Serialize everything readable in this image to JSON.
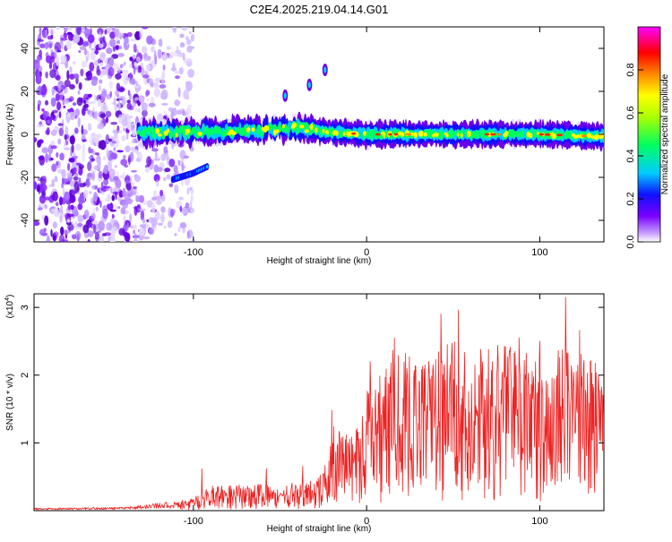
{
  "title": "C2E4.2025.219.04.14.G01",
  "chart_data": [
    {
      "type": "heatmap",
      "xlabel": "Height of straight line (km)",
      "ylabel": "Frequency (Hz)",
      "xlim": [
        -192,
        137
      ],
      "ylim": [
        -50,
        50
      ],
      "xticks": [
        -100,
        0,
        100
      ],
      "yticks": [
        -40,
        -20,
        0,
        20,
        40
      ],
      "grid": false,
      "colorbar": {
        "label": "Normalized spectral amplitude",
        "range": [
          0,
          1
        ],
        "ticks": [
          0.0,
          0.2,
          0.4,
          0.6,
          0.8
        ],
        "tick_labels": [
          "0.0",
          "0.2",
          "0.4",
          "0.6",
          "0.8"
        ],
        "colors": [
          "#ffffff",
          "#7a00ff",
          "#0000ff",
          "#00ccff",
          "#00ff00",
          "#ffff00",
          "#ff7f00",
          "#ff0000",
          "#ff00ff"
        ]
      },
      "features": {
        "noise_region_x": [
          -192,
          -105
        ],
        "main_band": [
          [
            -130,
            1
          ],
          [
            -100,
            1
          ],
          [
            -60,
            2
          ],
          [
            -40,
            3
          ],
          [
            -20,
            1
          ],
          [
            0,
            0
          ],
          [
            50,
            0
          ],
          [
            100,
            0
          ],
          [
            137,
            -1
          ]
        ],
        "lower_branch": [
          [
            -112,
            -21
          ],
          [
            -100,
            -18
          ],
          [
            -92,
            -15
          ]
        ],
        "upper_spikes": [
          [
            -47,
            18
          ],
          [
            -33,
            23
          ],
          [
            -24,
            30
          ]
        ]
      }
    },
    {
      "type": "line",
      "xlabel": "Height of straight line (km)",
      "ylabel": "SNR (10 * v/v)",
      "multiplier_label": "(x10",
      "multiplier_exp": "4",
      "multiplier_close": ")",
      "xlim": [
        -192,
        137
      ],
      "ylim": [
        0,
        3.2
      ],
      "xticks": [
        -100,
        0,
        100
      ],
      "yticks": [
        1,
        2,
        3
      ],
      "grid": false,
      "series": [
        {
          "color": "#ee2222",
          "envelope": [
            [
              -192,
              0.03
            ],
            [
              -140,
              0.04
            ],
            [
              -115,
              0.1
            ],
            [
              -100,
              0.18
            ],
            [
              -90,
              0.35
            ],
            [
              -80,
              0.38
            ],
            [
              -70,
              0.36
            ],
            [
              -60,
              0.38
            ],
            [
              -50,
              0.32
            ],
            [
              -40,
              0.42
            ],
            [
              -30,
              0.45
            ],
            [
              -25,
              0.55
            ],
            [
              -20,
              1.1
            ],
            [
              -18,
              1.3
            ],
            [
              -10,
              1.05
            ],
            [
              -5,
              1.25
            ],
            [
              0,
              1.75
            ],
            [
              5,
              2.0
            ],
            [
              10,
              1.9
            ],
            [
              15,
              2.3
            ],
            [
              20,
              2.25
            ],
            [
              30,
              2.1
            ],
            [
              40,
              2.3
            ],
            [
              50,
              2.4
            ],
            [
              60,
              2.3
            ],
            [
              70,
              2.3
            ],
            [
              80,
              2.35
            ],
            [
              90,
              2.2
            ],
            [
              100,
              2.3
            ],
            [
              110,
              2.4
            ],
            [
              120,
              2.35
            ],
            [
              130,
              2.2
            ],
            [
              137,
              2.1
            ]
          ],
          "peaks": [
            [
              -95,
              0.62
            ],
            [
              -58,
              0.62
            ],
            [
              -37,
              0.66
            ],
            [
              -20,
              1.48
            ],
            [
              2,
              2.2
            ],
            [
              16,
              2.55
            ],
            [
              43,
              2.9
            ],
            [
              53,
              2.96
            ],
            [
              67,
              2.2
            ],
            [
              88,
              2.55
            ],
            [
              100,
              2.5
            ],
            [
              115,
              3.15
            ],
            [
              123,
              2.66
            ],
            [
              134,
              2.0
            ]
          ]
        }
      ]
    }
  ]
}
